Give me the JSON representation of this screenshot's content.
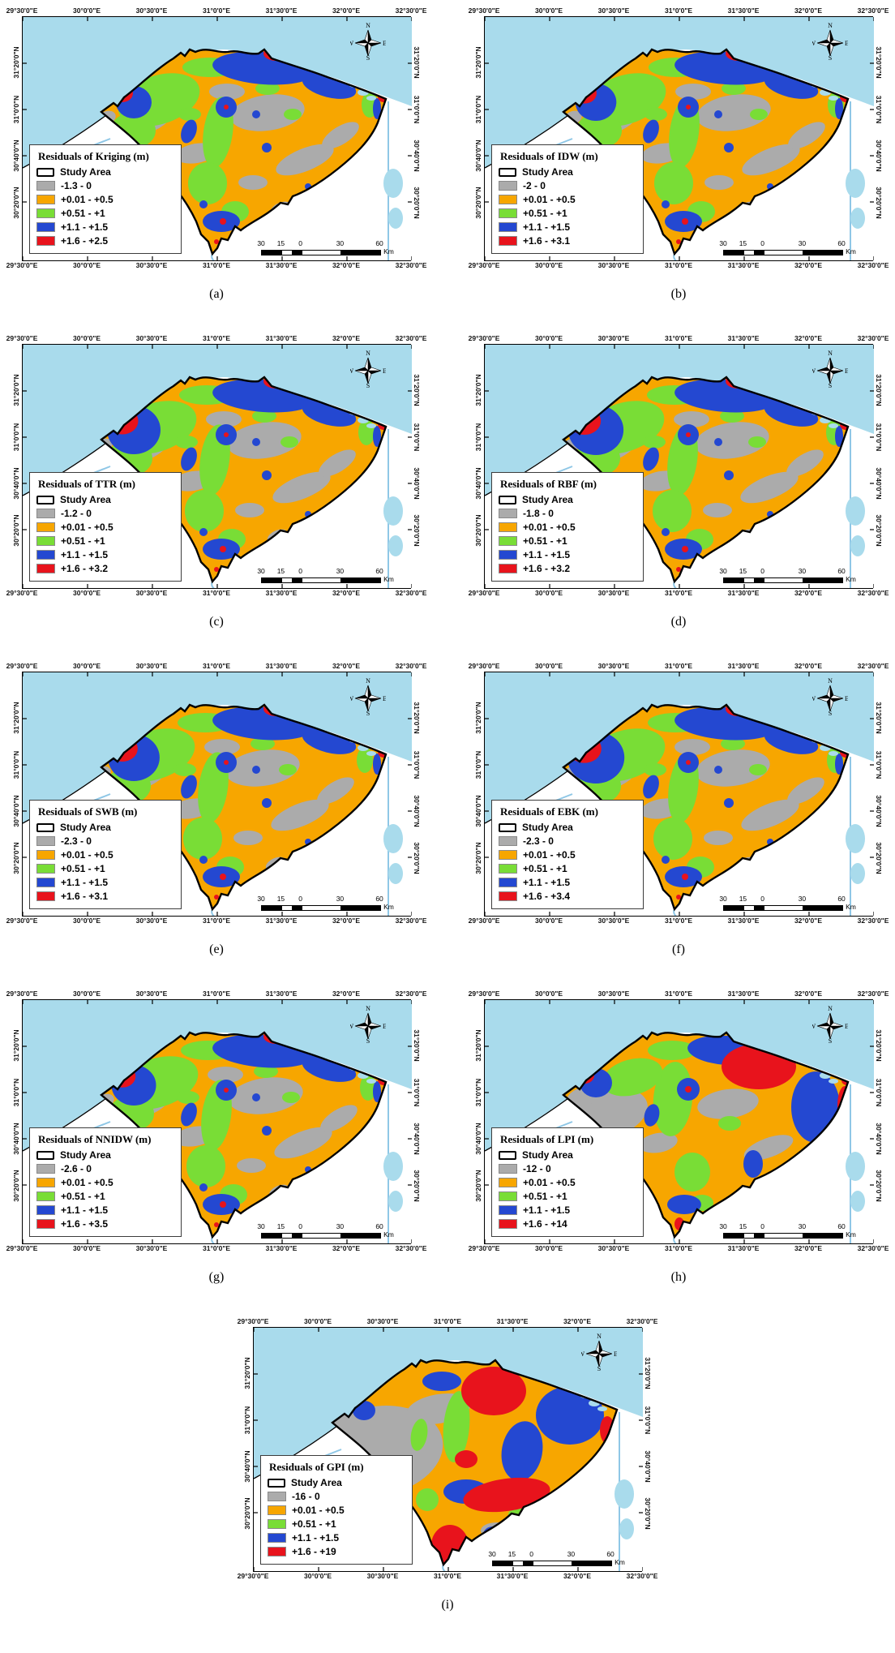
{
  "common": {
    "study_area_label": "Study Area",
    "compass": {
      "n": "N",
      "e": "E",
      "s": "S",
      "w": "W"
    },
    "scale_bar": {
      "labels": [
        "30",
        "15",
        "0",
        "30",
        "60"
      ],
      "unit": "Km"
    },
    "longitude_labels": [
      "29°30'0\"E",
      "30°0'0\"E",
      "30°30'0\"E",
      "31°0'0\"E",
      "31°30'0\"E",
      "32°0'0\"E",
      "32°30'0\"E"
    ],
    "latitude_labels": [
      "31°20'0\"N",
      "31°0'0\"N",
      "30°40'0\"N",
      "30°20'0\"N"
    ]
  },
  "colors": {
    "gray": "#ABABAB",
    "orange": "#F7A600",
    "green": "#79DD36",
    "blue": "#2448D1",
    "red": "#E8131C",
    "sea": "#A9DBEC",
    "water_line": "#8FC7E6",
    "study_outline": "#000000"
  },
  "panels": [
    {
      "id": "a",
      "caption": "(a)",
      "legend_title": "Residuals of Kriging (m)",
      "classes": [
        {
          "color": "gray",
          "label": "-1.3 - 0"
        },
        {
          "color": "orange",
          "label": "+0.01 - +0.5"
        },
        {
          "color": "green",
          "label": "+0.51 - +1"
        },
        {
          "color": "blue",
          "label": "+1.1 - +1.5"
        },
        {
          "color": "red",
          "label": "+1.6 - +2.5"
        }
      ]
    },
    {
      "id": "b",
      "caption": "(b)",
      "legend_title": "Residuals of IDW (m)",
      "classes": [
        {
          "color": "gray",
          "label": "-2 - 0"
        },
        {
          "color": "orange",
          "label": "+0.01 - +0.5"
        },
        {
          "color": "green",
          "label": "+0.51 - +1"
        },
        {
          "color": "blue",
          "label": "+1.1 - +1.5"
        },
        {
          "color": "red",
          "label": "+1.6 - +3.1"
        }
      ]
    },
    {
      "id": "c",
      "caption": "(c)",
      "legend_title": "Residuals of TTR (m)",
      "classes": [
        {
          "color": "gray",
          "label": "-1.2 - 0"
        },
        {
          "color": "orange",
          "label": "+0.01 - +0.5"
        },
        {
          "color": "green",
          "label": "+0.51 - +1"
        },
        {
          "color": "blue",
          "label": "+1.1 - +1.5"
        },
        {
          "color": "red",
          "label": "+1.6 - +3.2"
        }
      ]
    },
    {
      "id": "d",
      "caption": "(d)",
      "legend_title": "Residuals of RBF (m)",
      "classes": [
        {
          "color": "gray",
          "label": "-1.8 - 0"
        },
        {
          "color": "orange",
          "label": "+0.01 - +0.5"
        },
        {
          "color": "green",
          "label": "+0.51 - +1"
        },
        {
          "color": "blue",
          "label": "+1.1 - +1.5"
        },
        {
          "color": "red",
          "label": "+1.6 - +3.2"
        }
      ]
    },
    {
      "id": "e",
      "caption": "(e)",
      "legend_title": "Residuals of SWB (m)",
      "classes": [
        {
          "color": "gray",
          "label": "-2.3 - 0"
        },
        {
          "color": "orange",
          "label": "+0.01 - +0.5"
        },
        {
          "color": "green",
          "label": "+0.51 - +1"
        },
        {
          "color": "blue",
          "label": "+1.1 - +1.5"
        },
        {
          "color": "red",
          "label": "+1.6 - +3.1"
        }
      ]
    },
    {
      "id": "f",
      "caption": "(f)",
      "legend_title": "Residuals of EBK (m)",
      "classes": [
        {
          "color": "gray",
          "label": "-2.3 - 0"
        },
        {
          "color": "orange",
          "label": "+0.01 - +0.5"
        },
        {
          "color": "green",
          "label": "+0.51 - +1"
        },
        {
          "color": "blue",
          "label": "+1.1 - +1.5"
        },
        {
          "color": "red",
          "label": "+1.6 - +3.4"
        }
      ]
    },
    {
      "id": "g",
      "caption": "(g)",
      "legend_title": "Residuals of NNIDW (m)",
      "classes": [
        {
          "color": "gray",
          "label": "-2.6 - 0"
        },
        {
          "color": "orange",
          "label": "+0.01 - +0.5"
        },
        {
          "color": "green",
          "label": "+0.51 - +1"
        },
        {
          "color": "blue",
          "label": "+1.1 - +1.5"
        },
        {
          "color": "red",
          "label": "+1.6 - +3.5"
        }
      ]
    },
    {
      "id": "h",
      "caption": "(h)",
      "legend_title": "Residuals of LPI (m)",
      "classes": [
        {
          "color": "gray",
          "label": "-12 - 0"
        },
        {
          "color": "orange",
          "label": "+0.01 - +0.5"
        },
        {
          "color": "green",
          "label": "+0.51 - +1"
        },
        {
          "color": "blue",
          "label": "+1.1 - +1.5"
        },
        {
          "color": "red",
          "label": "+1.6 - +14"
        }
      ]
    },
    {
      "id": "i",
      "caption": "(i)",
      "legend_title": "Residuals of GPI (m)",
      "classes": [
        {
          "color": "gray",
          "label": "-16 - 0"
        },
        {
          "color": "orange",
          "label": "+0.01 - +0.5"
        },
        {
          "color": "green",
          "label": "+0.51 - +1"
        },
        {
          "color": "blue",
          "label": "+1.1 - +1.5"
        },
        {
          "color": "red",
          "label": "+1.6 - +19"
        }
      ]
    }
  ]
}
